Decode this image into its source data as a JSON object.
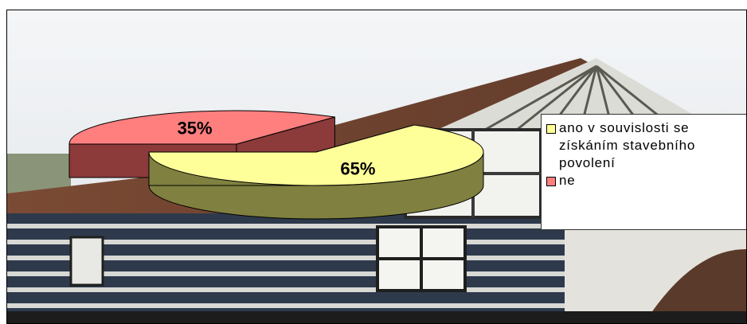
{
  "chart_data": {
    "type": "pie",
    "style": "3d-exploded",
    "title": "",
    "slices": [
      {
        "label": "ano v souvislosti se získáním stavebního povolení",
        "value": 65,
        "value_label": "65%",
        "color": "#ffff99",
        "side_color": "#808040"
      },
      {
        "label": "ne",
        "value": 35,
        "value_label": "35%",
        "color": "#ff7f7f",
        "side_color": "#8c3a3a"
      }
    ],
    "legend": {
      "placement": "right"
    },
    "background": "photo of a wooden timbered house"
  }
}
